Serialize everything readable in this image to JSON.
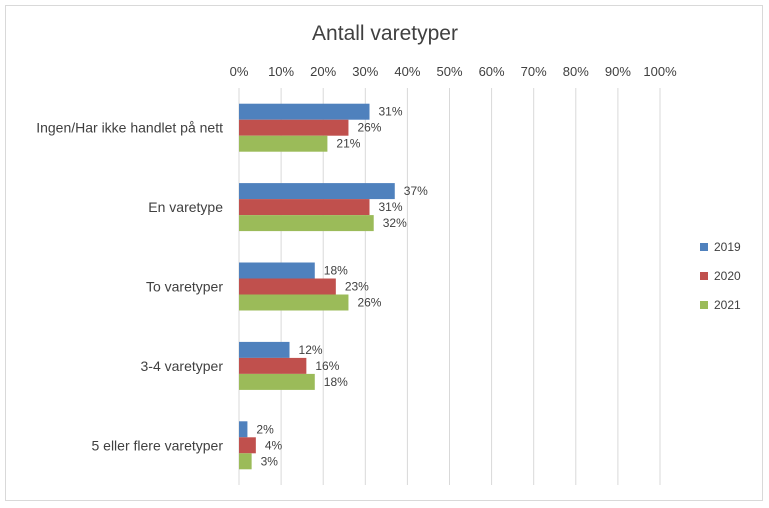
{
  "chart_data": {
    "type": "bar",
    "orientation": "horizontal",
    "title": "Antall varetyper",
    "categories": [
      "Ingen/Har ikke handlet på nett",
      "En varetype",
      "To varetyper",
      "3-4 varetyper",
      "5 eller flere varetyper"
    ],
    "series": [
      {
        "name": "2019",
        "color": "#4f81bd",
        "values": [
          31,
          37,
          18,
          12,
          2
        ],
        "labels": [
          "31%",
          "37%",
          "18%",
          "12%",
          "2%"
        ]
      },
      {
        "name": "2020",
        "color": "#c0504d",
        "values": [
          26,
          31,
          23,
          16,
          4
        ],
        "labels": [
          "26%",
          "31%",
          "23%",
          "16%",
          "4%"
        ]
      },
      {
        "name": "2021",
        "color": "#9bbb59",
        "values": [
          21,
          32,
          26,
          18,
          3
        ],
        "labels": [
          "21%",
          "32%",
          "26%",
          "18%",
          "3%"
        ]
      }
    ],
    "xlim": [
      0,
      100
    ],
    "xticks": [
      "0%",
      "10%",
      "20%",
      "30%",
      "40%",
      "50%",
      "60%",
      "70%",
      "80%",
      "90%",
      "100%"
    ],
    "grid": true,
    "legend": "right"
  }
}
